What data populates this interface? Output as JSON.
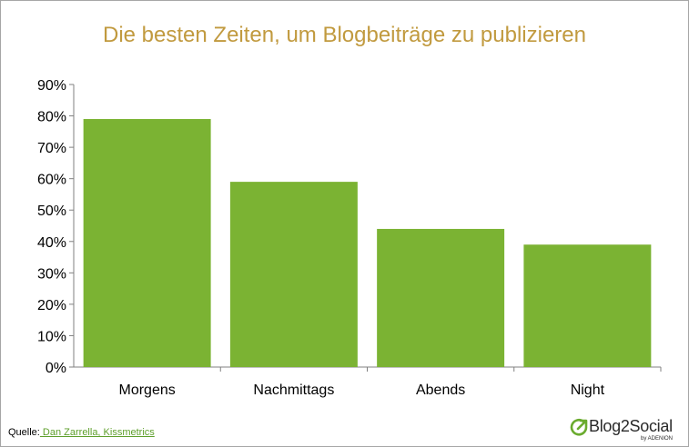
{
  "chart_data": {
    "type": "bar",
    "title": "Die besten Zeiten, um Blogbeiträge zu publizieren",
    "categories": [
      "Morgens",
      "Nachmittags",
      "Abends",
      "Night"
    ],
    "values": [
      79,
      59,
      44,
      39
    ],
    "y_tick_labels": [
      "0%",
      "10%",
      "20%",
      "30%",
      "40%",
      "50%",
      "60%",
      "70%",
      "80%",
      "90%"
    ],
    "ylim": [
      0,
      90
    ],
    "bar_color": "#7bb333",
    "grid": false,
    "legend": "none"
  },
  "footer": {
    "source_label": "Quelle:",
    "source_link": " Dan Zarrella, Kissmetrics",
    "logo_name": "Blog2Social",
    "logo_sub": "by ADENION",
    "logo_icon": "arrow-circle-icon"
  }
}
